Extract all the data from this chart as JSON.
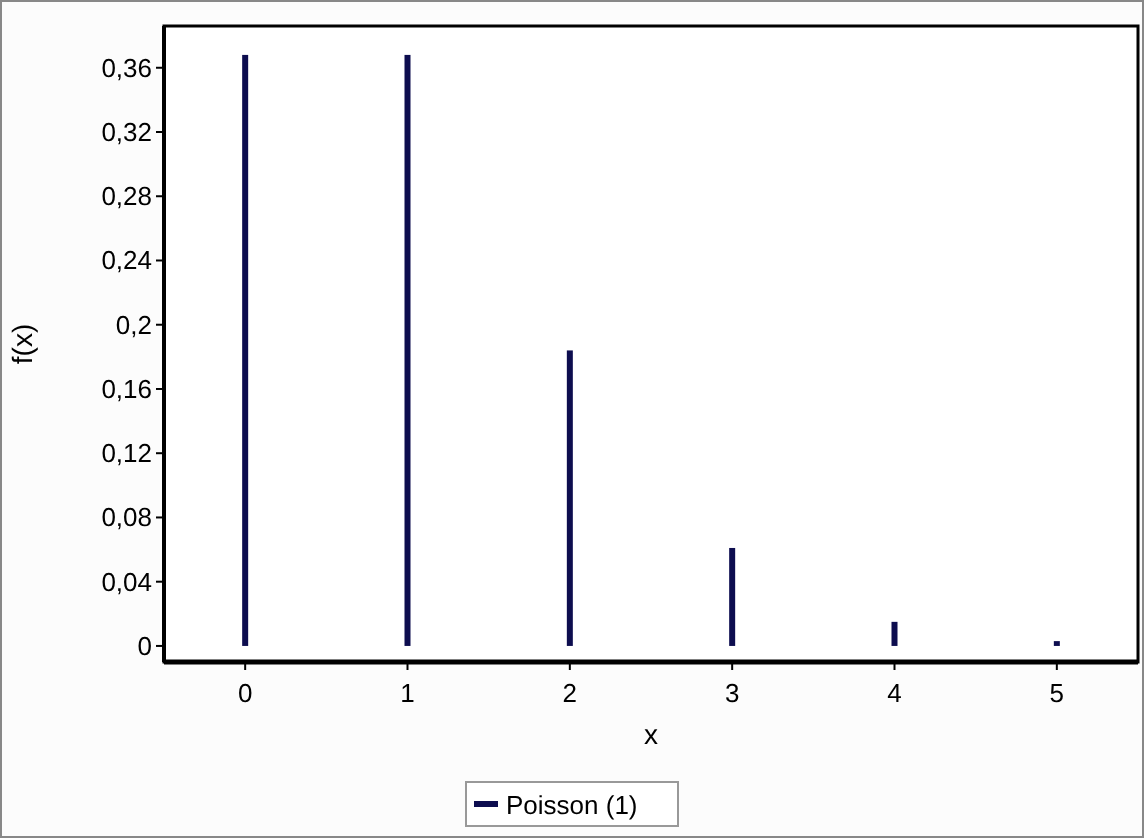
{
  "chart_data": {
    "type": "bar",
    "xlabel": "x",
    "ylabel": "f(x)",
    "x": [
      0,
      1,
      2,
      3,
      4,
      5
    ],
    "series": [
      {
        "name": "Poisson (1)",
        "color": "#0d0d4f",
        "values": [
          0.368,
          0.368,
          0.184,
          0.061,
          0.015,
          0.003
        ]
      }
    ],
    "xlim": [
      -0.5,
      5.5
    ],
    "ylim": [
      -0.01,
      0.386
    ],
    "xticks": [
      0,
      1,
      2,
      3,
      4,
      5
    ],
    "yticks": [
      0,
      {
        "value": 0.04,
        "label": "0,04"
      },
      {
        "value": 0.08,
        "label": "0,08"
      },
      {
        "value": 0.12,
        "label": "0,12"
      },
      {
        "value": 0.16,
        "label": "0,16"
      },
      {
        "value": 0.2,
        "label": "0,2"
      },
      {
        "value": 0.24,
        "label": "0,24"
      },
      {
        "value": 0.28,
        "label": "0,28"
      },
      {
        "value": 0.32,
        "label": "0,32"
      },
      {
        "value": 0.36,
        "label": "0,36"
      }
    ],
    "legend": "bottom"
  }
}
